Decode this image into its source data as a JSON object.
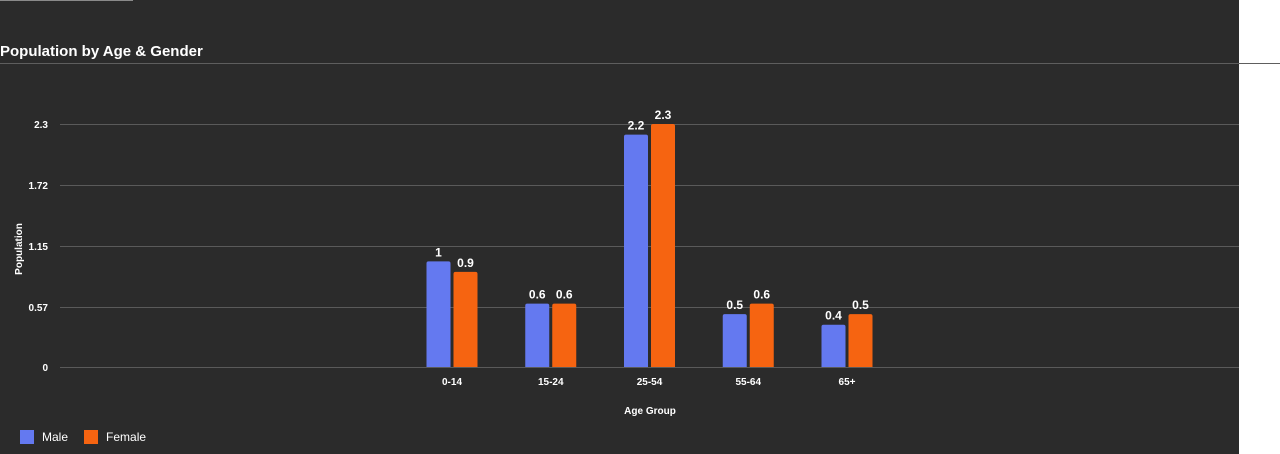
{
  "chart_data": {
    "type": "bar",
    "title": "Population by Age & Gender",
    "xlabel": "Age Group",
    "ylabel": "Population",
    "categories": [
      "0-14",
      "15-24",
      "25-54",
      "55-64",
      "65+"
    ],
    "series": [
      {
        "name": "Male",
        "color": "#6479f0",
        "values": [
          1,
          0.6,
          2.2,
          0.5,
          0.4
        ]
      },
      {
        "name": "Female",
        "color": "#f66411",
        "values": [
          0.9,
          0.6,
          2.3,
          0.6,
          0.5
        ]
      }
    ],
    "yticks": [
      "0",
      "0.57",
      "1.15",
      "1.72",
      "2.3"
    ],
    "ylim": [
      0,
      2.3
    ],
    "grid": true,
    "legend_position": "bottom-left"
  }
}
